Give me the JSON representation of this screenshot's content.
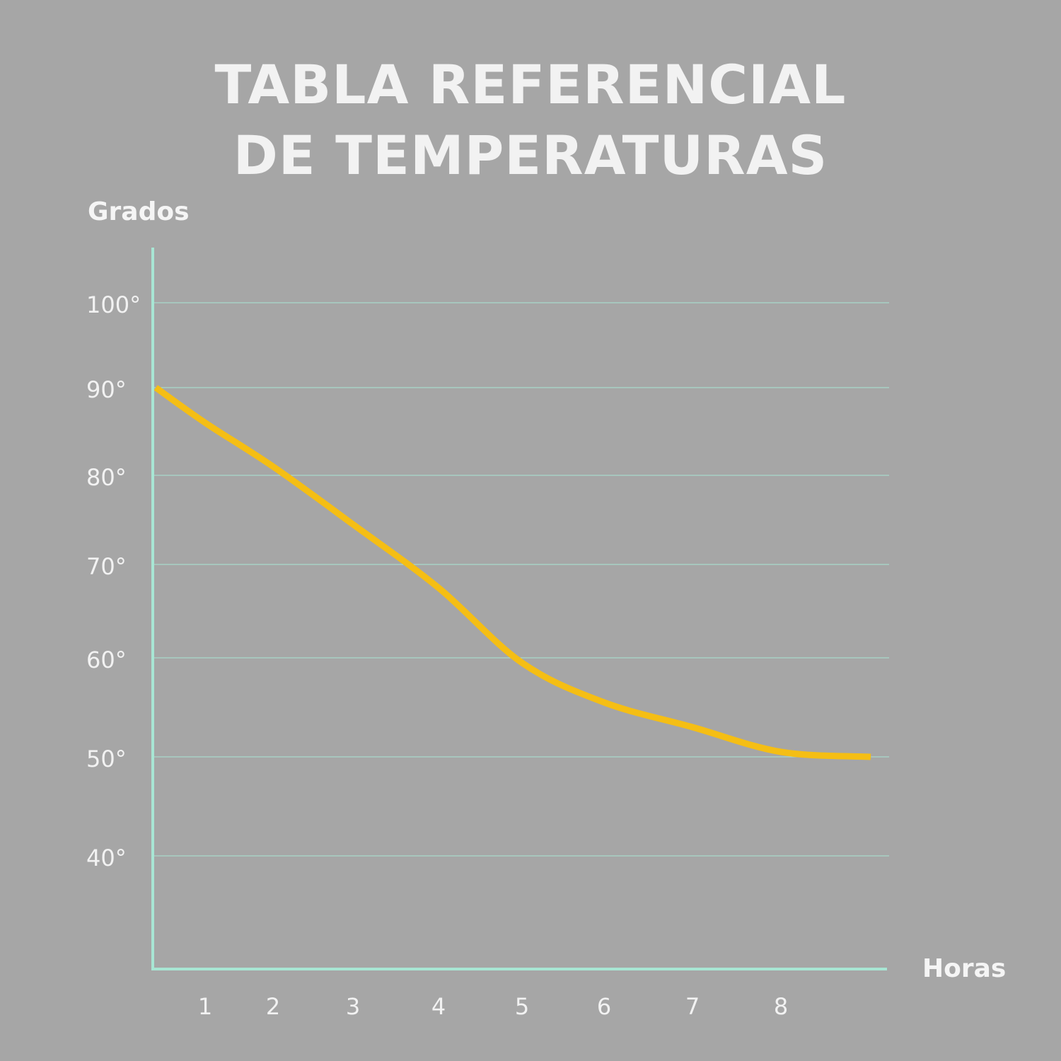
{
  "title_lines": [
    "TABLA REFERENCIAL",
    "DE TEMPERATURAS"
  ],
  "colors": {
    "background": "#a6a6a6",
    "axis": "#a8e6d4",
    "grid": "#a8e6d4",
    "line": "#f5be14",
    "text": "#f2f2f2"
  },
  "chart_data": {
    "type": "line",
    "title": "TABLA REFERENCIAL DE TEMPERATURAS",
    "ylabel": "Grados",
    "xlabel": "Horas",
    "y_ticks": [
      {
        "value": 100,
        "label": "100°"
      },
      {
        "value": 90,
        "label": "90°"
      },
      {
        "value": 80,
        "label": "80°"
      },
      {
        "value": 70,
        "label": "70°"
      },
      {
        "value": 60,
        "label": "60°"
      },
      {
        "value": 50,
        "label": "50°"
      },
      {
        "value": 40,
        "label": "40°"
      }
    ],
    "x_ticks": [
      {
        "value": 1,
        "label": "1"
      },
      {
        "value": 2,
        "label": "2"
      },
      {
        "value": 3,
        "label": "3"
      },
      {
        "value": 4,
        "label": "4"
      },
      {
        "value": 5,
        "label": "5"
      },
      {
        "value": 6,
        "label": "6"
      },
      {
        "value": 7,
        "label": "7"
      },
      {
        "value": 8,
        "label": "8"
      }
    ],
    "xlim": [
      0,
      9.5
    ],
    "ylim": [
      28,
      106
    ],
    "grid": true,
    "series": [
      {
        "x": [
          0.25,
          1.0,
          2.0,
          3.0,
          4.0,
          5.0,
          6.0,
          7.0,
          8.0,
          9.0
        ],
        "y": [
          90,
          86,
          81,
          74.5,
          67.5,
          59.5,
          55.5,
          53,
          50.5,
          50
        ]
      }
    ]
  }
}
